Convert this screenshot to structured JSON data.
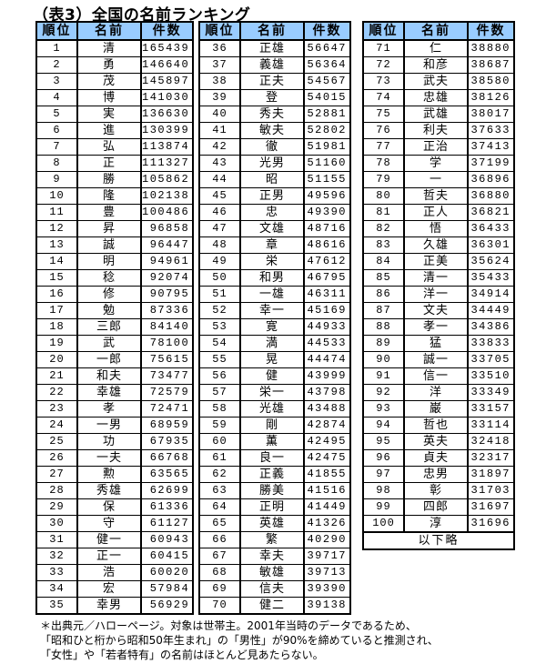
{
  "title": "（表3）全国の名前ランキング",
  "header_color": "#99ccff",
  "columns": [
    "順位",
    "名前",
    "件数"
  ],
  "tables": [
    [
      [
        1,
        "清",
        165439
      ],
      [
        2,
        "勇",
        146640
      ],
      [
        3,
        "茂",
        145897
      ],
      [
        4,
        "博",
        141030
      ],
      [
        5,
        "実",
        136630
      ],
      [
        6,
        "進",
        130399
      ],
      [
        7,
        "弘",
        113874
      ],
      [
        8,
        "正",
        111327
      ],
      [
        9,
        "勝",
        105862
      ],
      [
        10,
        "隆",
        102138
      ],
      [
        11,
        "豊",
        100486
      ],
      [
        12,
        "昇",
        96858
      ],
      [
        13,
        "誠",
        96447
      ],
      [
        14,
        "明",
        94961
      ],
      [
        15,
        "稔",
        92074
      ],
      [
        16,
        "修",
        90795
      ],
      [
        17,
        "勉",
        87336
      ],
      [
        18,
        "三郎",
        84140
      ],
      [
        19,
        "武",
        78100
      ],
      [
        20,
        "一郎",
        75615
      ],
      [
        21,
        "和夫",
        73477
      ],
      [
        22,
        "幸雄",
        72579
      ],
      [
        23,
        "孝",
        72471
      ],
      [
        24,
        "一男",
        68959
      ],
      [
        25,
        "功",
        67935
      ],
      [
        26,
        "一夫",
        66768
      ],
      [
        27,
        "勲",
        63565
      ],
      [
        28,
        "秀雄",
        62699
      ],
      [
        29,
        "保",
        61336
      ],
      [
        30,
        "守",
        61127
      ],
      [
        31,
        "健一",
        60943
      ],
      [
        32,
        "正一",
        60415
      ],
      [
        33,
        "浩",
        60020
      ],
      [
        34,
        "宏",
        57984
      ],
      [
        35,
        "幸男",
        56929
      ]
    ],
    [
      [
        36,
        "正雄",
        56647
      ],
      [
        37,
        "義雄",
        56364
      ],
      [
        38,
        "正夫",
        54567
      ],
      [
        39,
        "登",
        54015
      ],
      [
        40,
        "秀夫",
        52881
      ],
      [
        41,
        "敏夫",
        52802
      ],
      [
        42,
        "徹",
        51981
      ],
      [
        43,
        "光男",
        51160
      ],
      [
        44,
        "昭",
        51155
      ],
      [
        45,
        "正男",
        49596
      ],
      [
        46,
        "忠",
        49390
      ],
      [
        47,
        "文雄",
        48716
      ],
      [
        48,
        "章",
        48616
      ],
      [
        49,
        "栄",
        47612
      ],
      [
        50,
        "和男",
        46795
      ],
      [
        51,
        "一雄",
        46311
      ],
      [
        52,
        "幸一",
        45169
      ],
      [
        53,
        "寛",
        44933
      ],
      [
        54,
        "満",
        44533
      ],
      [
        55,
        "晃",
        44474
      ],
      [
        56,
        "健",
        43999
      ],
      [
        57,
        "栄一",
        43798
      ],
      [
        58,
        "光雄",
        43488
      ],
      [
        59,
        "剛",
        42874
      ],
      [
        60,
        "薫",
        42495
      ],
      [
        61,
        "良一",
        42475
      ],
      [
        62,
        "正義",
        41855
      ],
      [
        63,
        "勝美",
        41516
      ],
      [
        64,
        "正明",
        41449
      ],
      [
        65,
        "英雄",
        41326
      ],
      [
        66,
        "繁",
        40290
      ],
      [
        67,
        "幸夫",
        39717
      ],
      [
        68,
        "敏雄",
        39713
      ],
      [
        69,
        "信夫",
        39390
      ],
      [
        70,
        "健二",
        39138
      ]
    ],
    [
      [
        71,
        "仁",
        38880
      ],
      [
        72,
        "和彦",
        38687
      ],
      [
        73,
        "武夫",
        38580
      ],
      [
        74,
        "忠雄",
        38126
      ],
      [
        75,
        "武雄",
        38017
      ],
      [
        76,
        "利夫",
        37633
      ],
      [
        77,
        "正治",
        37413
      ],
      [
        78,
        "学",
        37199
      ],
      [
        79,
        "一",
        36896
      ],
      [
        80,
        "哲夫",
        36880
      ],
      [
        81,
        "正人",
        36821
      ],
      [
        82,
        "悟",
        36433
      ],
      [
        83,
        "久雄",
        36301
      ],
      [
        84,
        "正美",
        35624
      ],
      [
        85,
        "清一",
        35433
      ],
      [
        86,
        "洋一",
        34914
      ],
      [
        87,
        "文夫",
        34449
      ],
      [
        88,
        "孝一",
        34386
      ],
      [
        89,
        "猛",
        33833
      ],
      [
        90,
        "誠一",
        33705
      ],
      [
        91,
        "信一",
        33510
      ],
      [
        92,
        "洋",
        33349
      ],
      [
        93,
        "巌",
        33157
      ],
      [
        94,
        "哲也",
        33114
      ],
      [
        95,
        "英夫",
        32418
      ],
      [
        96,
        "貞夫",
        32317
      ],
      [
        97,
        "忠男",
        31897
      ],
      [
        98,
        "彰",
        31703
      ],
      [
        99,
        "四郎",
        31697
      ],
      [
        100,
        "淳",
        31696
      ]
    ]
  ],
  "table3_footer": "以下略",
  "notes": [
    "＊出典元／ハローページ。対象は世帯主。2001年当時のデータであるため、",
    "「昭和ひと桁から昭和50年生まれ」の「男性」が90%を締めていると推測され、",
    "「女性」や「若者特有」の名前はほとんど見あたらない。"
  ]
}
